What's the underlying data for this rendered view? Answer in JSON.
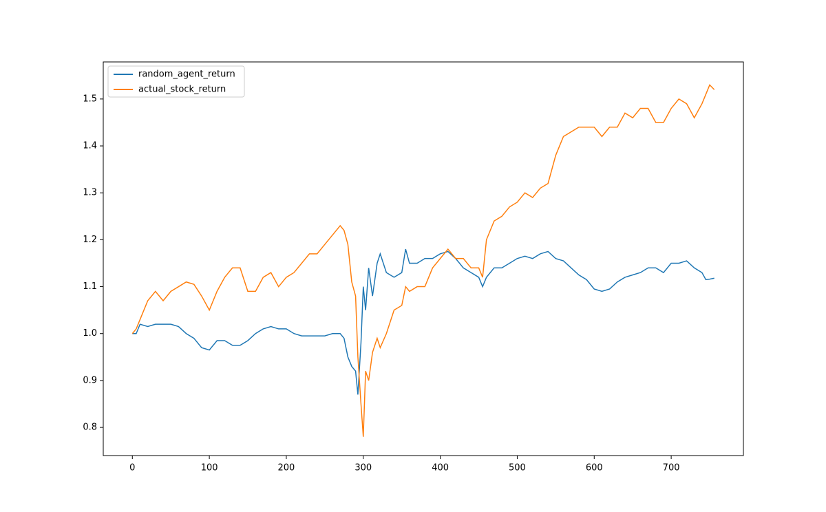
{
  "chart_data": {
    "type": "line",
    "x": [
      0,
      5,
      10,
      20,
      30,
      40,
      50,
      60,
      70,
      80,
      90,
      100,
      110,
      120,
      130,
      140,
      150,
      160,
      170,
      180,
      190,
      200,
      210,
      220,
      230,
      240,
      250,
      260,
      270,
      275,
      280,
      285,
      290,
      293,
      297,
      300,
      303,
      307,
      312,
      318,
      322,
      330,
      340,
      350,
      355,
      360,
      370,
      380,
      390,
      400,
      410,
      420,
      430,
      440,
      450,
      455,
      460,
      470,
      480,
      490,
      500,
      510,
      520,
      530,
      540,
      550,
      560,
      570,
      580,
      590,
      600,
      610,
      620,
      630,
      640,
      650,
      660,
      670,
      680,
      690,
      700,
      710,
      720,
      730,
      740,
      745,
      750,
      756
    ],
    "series": [
      {
        "name": "random_agent_return",
        "color": "#1f77b4",
        "values": [
          1.0,
          1.0,
          1.02,
          1.015,
          1.02,
          1.02,
          1.02,
          1.015,
          1.0,
          0.99,
          0.97,
          0.965,
          0.985,
          0.985,
          0.975,
          0.975,
          0.985,
          1.0,
          1.01,
          1.015,
          1.01,
          1.01,
          1.0,
          0.995,
          0.995,
          0.995,
          0.995,
          1.0,
          1.0,
          0.99,
          0.95,
          0.93,
          0.92,
          0.87,
          0.98,
          1.1,
          1.05,
          1.14,
          1.08,
          1.15,
          1.17,
          1.13,
          1.12,
          1.13,
          1.18,
          1.15,
          1.15,
          1.16,
          1.16,
          1.17,
          1.175,
          1.16,
          1.14,
          1.13,
          1.12,
          1.1,
          1.12,
          1.14,
          1.14,
          1.15,
          1.16,
          1.165,
          1.16,
          1.17,
          1.175,
          1.16,
          1.155,
          1.14,
          1.125,
          1.115,
          1.095,
          1.09,
          1.095,
          1.11,
          1.12,
          1.125,
          1.13,
          1.14,
          1.14,
          1.13,
          1.15,
          1.15,
          1.155,
          1.14,
          1.13,
          1.115,
          1.116,
          1.118
        ]
      },
      {
        "name": "actual_stock_return",
        "color": "#ff7f0e",
        "values": [
          1.0,
          1.01,
          1.03,
          1.07,
          1.09,
          1.07,
          1.09,
          1.1,
          1.11,
          1.105,
          1.08,
          1.05,
          1.09,
          1.12,
          1.14,
          1.14,
          1.09,
          1.09,
          1.12,
          1.13,
          1.1,
          1.12,
          1.13,
          1.15,
          1.17,
          1.17,
          1.19,
          1.21,
          1.23,
          1.22,
          1.19,
          1.11,
          1.08,
          0.95,
          0.85,
          0.78,
          0.92,
          0.9,
          0.96,
          0.99,
          0.97,
          1.0,
          1.05,
          1.06,
          1.1,
          1.09,
          1.1,
          1.1,
          1.14,
          1.16,
          1.18,
          1.16,
          1.16,
          1.14,
          1.14,
          1.12,
          1.2,
          1.24,
          1.25,
          1.27,
          1.28,
          1.3,
          1.29,
          1.31,
          1.32,
          1.38,
          1.42,
          1.43,
          1.44,
          1.44,
          1.44,
          1.42,
          1.44,
          1.44,
          1.47,
          1.46,
          1.48,
          1.48,
          1.45,
          1.45,
          1.48,
          1.5,
          1.49,
          1.46,
          1.49,
          1.51,
          1.53,
          1.52
        ]
      }
    ],
    "xlim": [
      -37.8,
      793.8
    ],
    "ylim": [
      0.74,
      1.579
    ],
    "xticks": [
      0,
      100,
      200,
      300,
      400,
      500,
      600,
      700
    ],
    "yticks": [
      0.8,
      0.9,
      {
        "value": 1,
        "label": "1.0"
      },
      1.1,
      1.2,
      1.3,
      1.4,
      1.5
    ],
    "legend": "upper left"
  }
}
